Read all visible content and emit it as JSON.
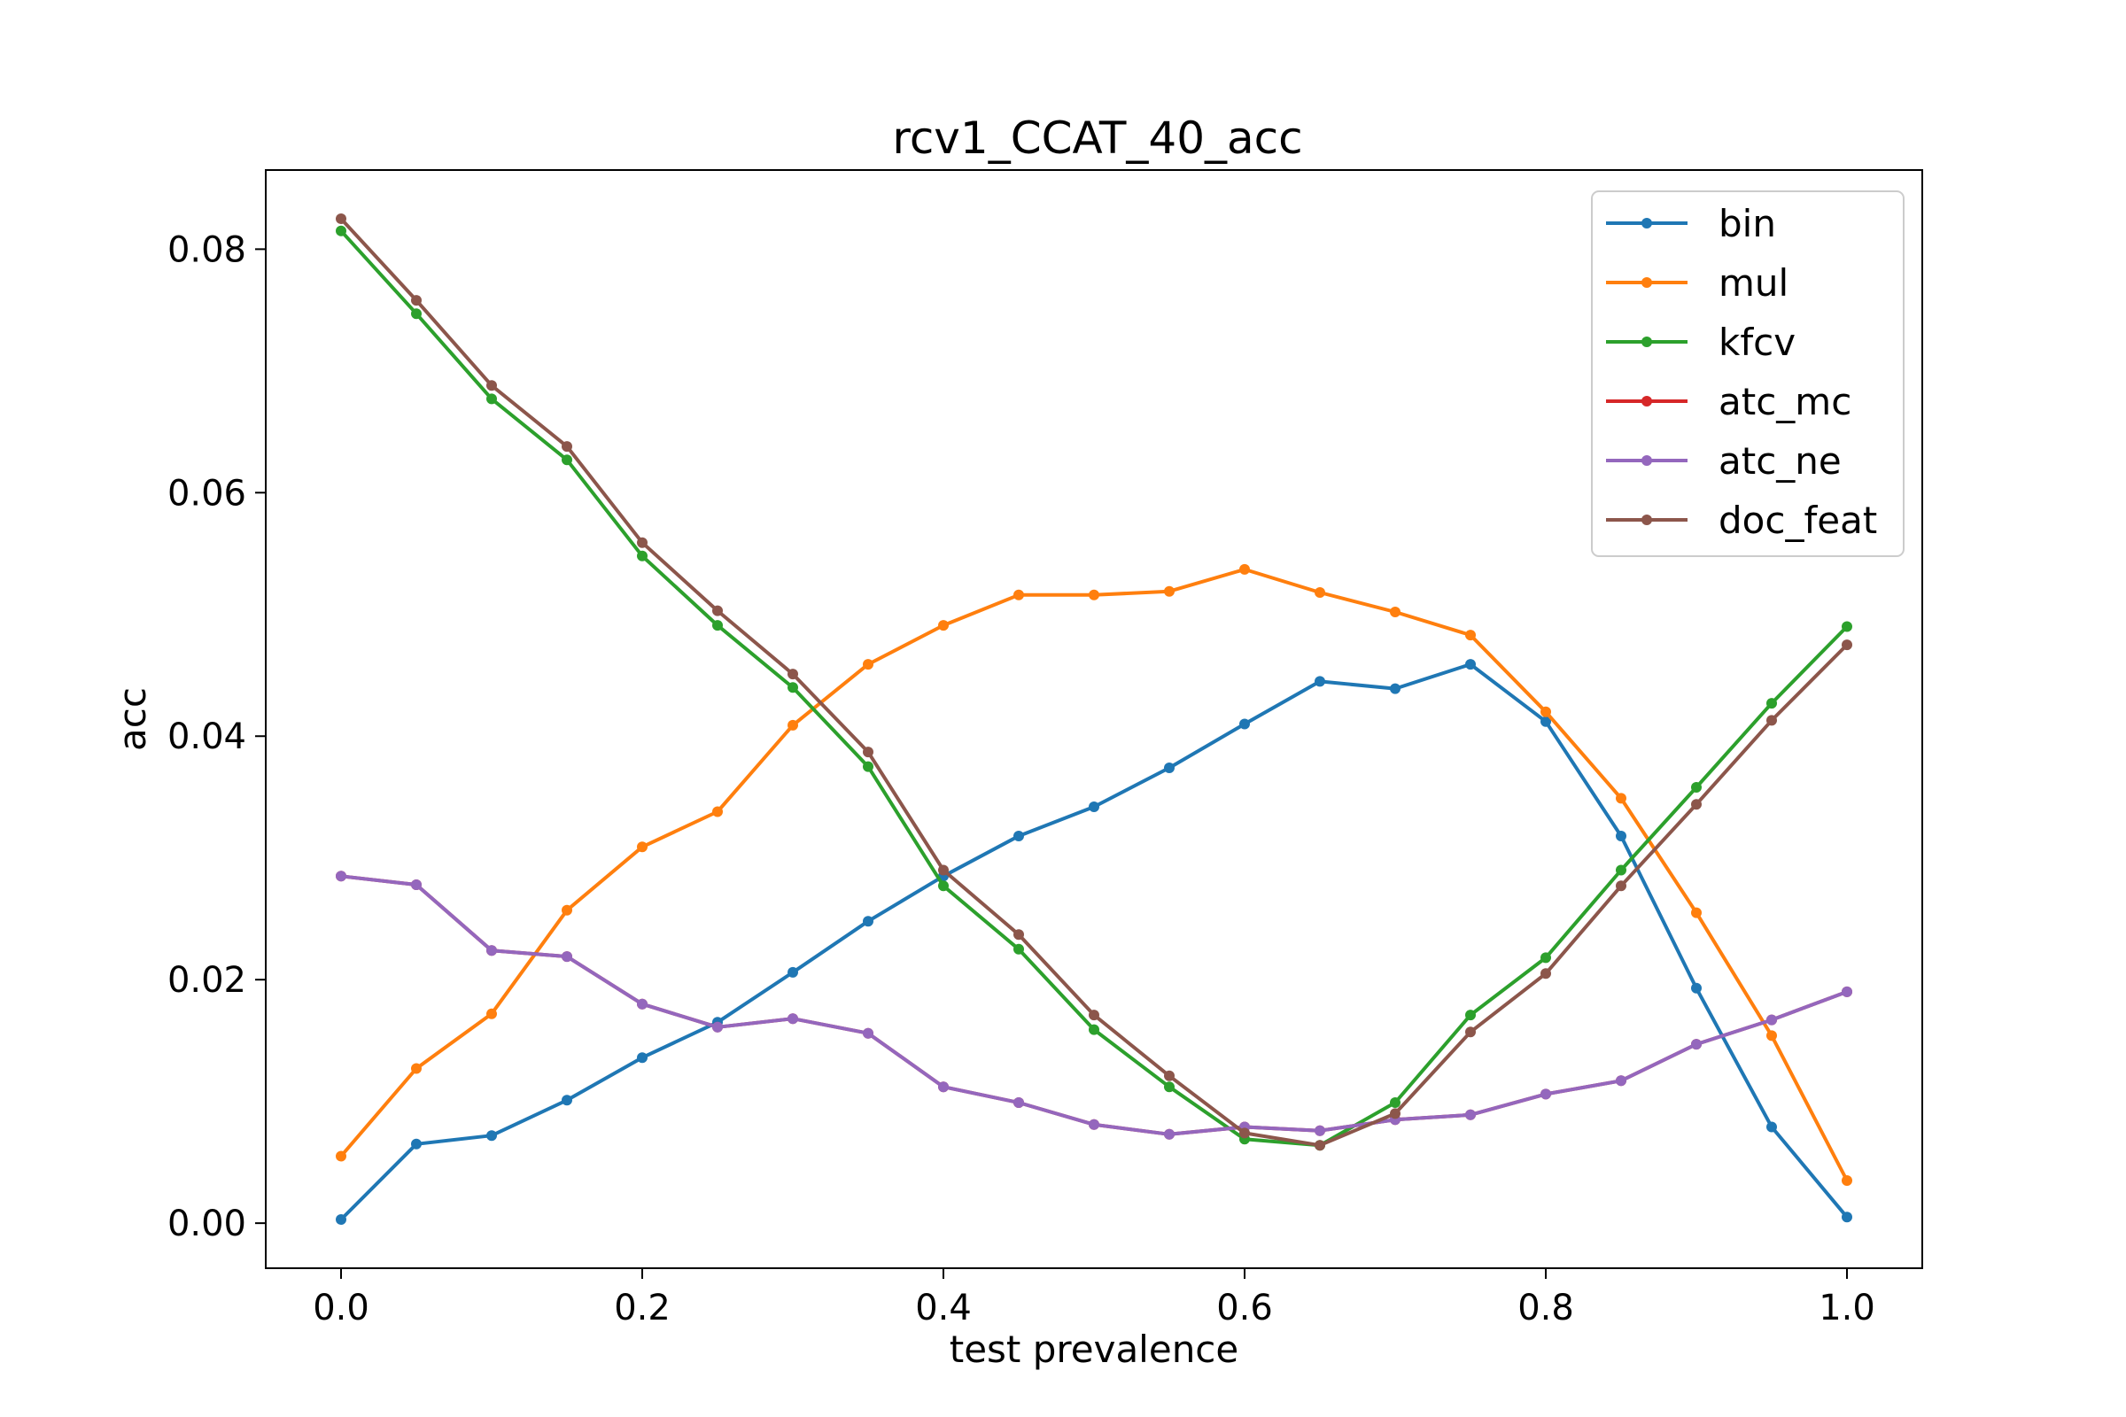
{
  "chart_data": {
    "type": "line",
    "title": "rcv1_CCAT_40_acc",
    "xlabel": "test prevalence",
    "ylabel": "acc",
    "xlim": [
      -0.05,
      1.05
    ],
    "ylim": [
      -0.0037,
      0.0865
    ],
    "xticks": [
      "0.0",
      "0.2",
      "0.4",
      "0.6",
      "0.8",
      "1.0"
    ],
    "yticks": [
      "0.00",
      "0.02",
      "0.04",
      "0.06",
      "0.08"
    ],
    "grid": false,
    "legend_position": "top-right",
    "x": [
      0.0,
      0.05,
      0.1,
      0.15,
      0.2,
      0.25,
      0.3,
      0.35,
      0.4,
      0.45,
      0.5,
      0.55,
      0.6,
      0.65,
      0.7,
      0.75,
      0.8,
      0.85,
      0.9,
      0.95,
      1.0
    ],
    "series": [
      {
        "name": "bin",
        "color": "#1f77b4",
        "values": [
          0.0003,
          0.0065,
          0.0072,
          0.0101,
          0.0136,
          0.0165,
          0.0206,
          0.0248,
          0.0285,
          0.0318,
          0.0342,
          0.0374,
          0.041,
          0.0445,
          0.0439,
          0.0459,
          0.0412,
          0.0318,
          0.0193,
          0.0079,
          0.0005
        ]
      },
      {
        "name": "mul",
        "color": "#ff7f0e",
        "values": [
          0.0055,
          0.0127,
          0.0172,
          0.0257,
          0.0309,
          0.0338,
          0.0409,
          0.0459,
          0.0491,
          0.0516,
          0.0516,
          0.0519,
          0.0537,
          0.0518,
          0.0502,
          0.0483,
          0.042,
          0.0349,
          0.0255,
          0.0154,
          0.0035
        ]
      },
      {
        "name": "kfcv",
        "color": "#2ca02c",
        "values": [
          0.0815,
          0.0747,
          0.0677,
          0.0627,
          0.0548,
          0.0491,
          0.044,
          0.0375,
          0.0277,
          0.0225,
          0.0159,
          0.0112,
          0.0069,
          0.0064,
          0.0099,
          0.0171,
          0.0218,
          0.029,
          0.0358,
          0.0427,
          0.049
        ]
      },
      {
        "name": "atc_mc",
        "color": "#d62728",
        "values": [
          0.0285,
          0.0278,
          0.0224,
          0.0219,
          0.018,
          0.0161,
          0.0168,
          0.0156,
          0.0112,
          0.0099,
          0.0081,
          0.0073,
          0.0079,
          0.0076,
          0.0085,
          0.0089,
          0.0106,
          0.0117,
          0.0147,
          0.0167,
          0.019
        ]
      },
      {
        "name": "atc_ne",
        "color": "#9467bd",
        "values": [
          0.0285,
          0.0278,
          0.0224,
          0.0219,
          0.018,
          0.0161,
          0.0168,
          0.0156,
          0.0112,
          0.0099,
          0.0081,
          0.0073,
          0.0079,
          0.0076,
          0.0085,
          0.0089,
          0.0106,
          0.0117,
          0.0147,
          0.0167,
          0.019
        ]
      },
      {
        "name": "doc_feat",
        "color": "#8c564b",
        "values": [
          0.0825,
          0.0758,
          0.0688,
          0.0638,
          0.0559,
          0.0503,
          0.0451,
          0.0387,
          0.029,
          0.0237,
          0.0171,
          0.0121,
          0.0074,
          0.0064,
          0.009,
          0.0157,
          0.0205,
          0.0277,
          0.0344,
          0.0413,
          0.0475
        ]
      }
    ]
  }
}
